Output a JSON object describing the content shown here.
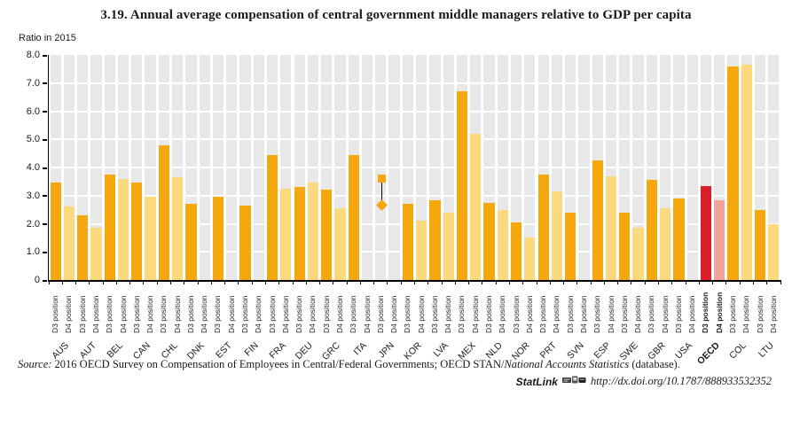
{
  "title": "3.19. Annual average compensation of central government middle managers relative to GDP per capita",
  "chart_data": {
    "type": "bar",
    "title": "3.19. Annual average compensation of central government middle managers relative to GDP per capita",
    "ylabel": "Ratio in 2015",
    "ylim": [
      0,
      8
    ],
    "ytick_step": 1.0,
    "ytick_labels": [
      "0",
      "1.0",
      "2.0",
      "3.0",
      "4.0",
      "5.0",
      "6.0",
      "7.0",
      "8.0"
    ],
    "grid": "horizontal white gridlines on grey striped background",
    "legend": "none (series identified by per-country x labels)",
    "series_labels": [
      "D3 position",
      "D4 position"
    ],
    "groups": [
      {
        "code": "AUS",
        "d3": 3.45,
        "d4": 2.6
      },
      {
        "code": "AUT",
        "d3": 2.3,
        "d4": 1.85
      },
      {
        "code": "BEL",
        "d3": 3.75,
        "d4": 3.6
      },
      {
        "code": "CAN",
        "d3": 3.45,
        "d4": 2.95
      },
      {
        "code": "CHL",
        "d3": 4.8,
        "d4": 3.65
      },
      {
        "code": "DNK",
        "d3": 2.7,
        "d4": null
      },
      {
        "code": "EST",
        "d3": 2.95,
        "d4": null
      },
      {
        "code": "FIN",
        "d3": 2.65,
        "d4": null
      },
      {
        "code": "FRA",
        "d3": 4.45,
        "d4": 3.25
      },
      {
        "code": "DEU",
        "d3": 3.3,
        "d4": 3.45
      },
      {
        "code": "GRC",
        "d3": 3.2,
        "d4": 2.55
      },
      {
        "code": "ITA",
        "d3": 4.45,
        "d4": null
      },
      {
        "code": "JPN",
        "d3": 3.6,
        "d4": 2.65,
        "style": "marker",
        "marker_d3": "square",
        "marker_d4": "diamond"
      },
      {
        "code": "KOR",
        "d3": 2.7,
        "d4": 2.1
      },
      {
        "code": "LVA",
        "d3": 2.85,
        "d4": 2.4
      },
      {
        "code": "MEX",
        "d3": 6.7,
        "d4": 5.2
      },
      {
        "code": "NLD",
        "d3": 2.75,
        "d4": 2.5
      },
      {
        "code": "NOR",
        "d3": 2.05,
        "d4": 1.5
      },
      {
        "code": "PRT",
        "d3": 3.75,
        "d4": 3.15
      },
      {
        "code": "SVN",
        "d3": 2.4,
        "d4": null
      },
      {
        "code": "ESP",
        "d3": 4.25,
        "d4": 3.7
      },
      {
        "code": "SWE",
        "d3": 2.4,
        "d4": 1.85
      },
      {
        "code": "GBR",
        "d3": 3.55,
        "d4": 2.55
      },
      {
        "code": "USA",
        "d3": 2.9,
        "d4": null
      },
      {
        "code": "OECD",
        "d3": 3.35,
        "d4": 2.85,
        "highlight": true,
        "bold_label": true
      },
      {
        "code": "COL",
        "d3": 7.6,
        "d4": 7.65
      },
      {
        "code": "LTU",
        "d3": 2.5,
        "d4": 2.0
      }
    ],
    "colors": {
      "d3": "#F4A80E",
      "d4": "#FCD87E",
      "highlight_d3": "#DA1E27",
      "highlight_d4": "#F2A29B",
      "stripe": "#E8E8E8",
      "gridline": "#FFFFFF",
      "axis": "#000000"
    }
  },
  "footer": {
    "source_label": "Source:",
    "source_text": " 2016 OECD Survey on Compensation of Employees in Central/Federal Governments; OECD STAN/",
    "source_italic": "National Accounts Statistics",
    "source_tail": " (database).",
    "statlink_label": "StatLink",
    "statlink_url": "http://dx.doi.org/10.1787/888933532352"
  }
}
